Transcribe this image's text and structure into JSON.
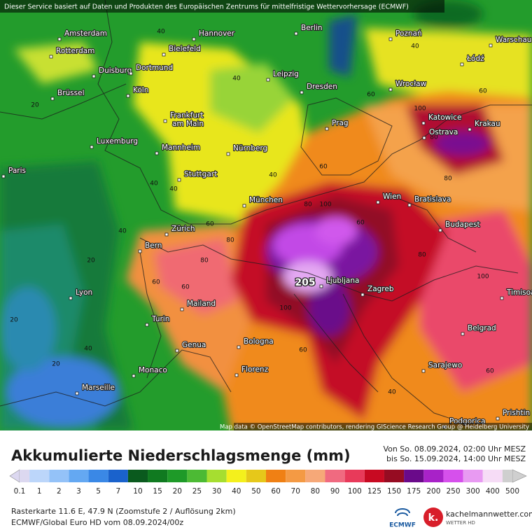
{
  "header": {
    "notice": "Dieser Service basiert auf Daten und Produkten des Europäischen Zentrums für mittelfristige Wettervorhersage (ECMWF)"
  },
  "map": {
    "cities": [
      "Amsterdam",
      "Rotterdam",
      "Hannover",
      "Berlin",
      "Poznań",
      "Warschau",
      "Bielefeld",
      "Duisburg",
      "Dortmund",
      "Leipzig",
      "Dresden",
      "Wrocław",
      "Łódź",
      "Brüssel",
      "Köln",
      "Frankfurt",
      "am Main",
      "Katowice",
      "Krakau",
      "Ostrava",
      "Prag",
      "Luxemburg",
      "Mannheim",
      "Nürnberg",
      "Paris",
      "Stuttgart",
      "Wien",
      "Bratislava",
      "München",
      "Budapest",
      "Zürich",
      "Bern",
      "Lyon",
      "Ljubljana",
      "Zagreb",
      "Mailand",
      "Timisoa",
      "Turin",
      "Belgrad",
      "Genua",
      "Bologna",
      "Sarajewo",
      "Monaco",
      "Florenz",
      "Marseille",
      "Prishtin",
      "Podgorica"
    ],
    "max_label": "205",
    "contour_labels": [
      "40",
      "40",
      "20",
      "40",
      "40",
      "60",
      "80",
      "60",
      "40",
      "60",
      "80",
      "100",
      "60",
      "40",
      "20",
      "40",
      "60",
      "80",
      "100",
      "80",
      "60",
      "40",
      "20",
      "60",
      "80",
      "100",
      "60",
      "40",
      "20",
      "80",
      "100",
      "60"
    ],
    "attribution": "Map data © OpenStreetMap contributors, rendering GIScience Research Group @ Heidelberg University"
  },
  "legend": {
    "title": "Akkumulierte Niederschlagsmenge (mm)",
    "period_from": "Von So. 08.09.2024, 02:00 Uhr MESZ",
    "period_to": "bis So. 15.09.2024, 14:00 Uhr MESZ",
    "scale": [
      {
        "label": "0.1",
        "color": "#dcd8f0"
      },
      {
        "label": "1",
        "color": "#bcd6fa"
      },
      {
        "label": "2",
        "color": "#94c2f8"
      },
      {
        "label": "3",
        "color": "#64a8f2"
      },
      {
        "label": "5",
        "color": "#3a88e6"
      },
      {
        "label": "7",
        "color": "#1a62cc"
      },
      {
        "label": "10",
        "color": "#0a5a1e"
      },
      {
        "label": "15",
        "color": "#107a20"
      },
      {
        "label": "20",
        "color": "#1e9a28"
      },
      {
        "label": "25",
        "color": "#4cba34"
      },
      {
        "label": "30",
        "color": "#a6de30"
      },
      {
        "label": "40",
        "color": "#f4f01c"
      },
      {
        "label": "50",
        "color": "#e6c81a"
      },
      {
        "label": "60",
        "color": "#f08014"
      },
      {
        "label": "70",
        "color": "#f49a44"
      },
      {
        "label": "80",
        "color": "#f6a878"
      },
      {
        "label": "90",
        "color": "#f06a80"
      },
      {
        "label": "100",
        "color": "#e83a5a"
      },
      {
        "label": "125",
        "color": "#c80a22"
      },
      {
        "label": "150",
        "color": "#960c22"
      },
      {
        "label": "175",
        "color": "#6a0a8a"
      },
      {
        "label": "200",
        "color": "#a822c8"
      },
      {
        "label": "250",
        "color": "#d650ec"
      },
      {
        "label": "300",
        "color": "#e89af2"
      },
      {
        "label": "400",
        "color": "#f6dcf6"
      },
      {
        "label": "500",
        "color": "#cfcfcf"
      }
    ]
  },
  "footer": {
    "raster": "Rasterkarte 11.6 E, 47.9 N (Zoomstufe 2 / Auflösung 2km)",
    "model": "ECMWF/Global Euro HD vom 08.09.2024/00z",
    "ecmwf_logo": "ECMWF",
    "site_logo": "k.",
    "site": "kachelmannwetter.com",
    "site_sub": "WETTER HD"
  }
}
